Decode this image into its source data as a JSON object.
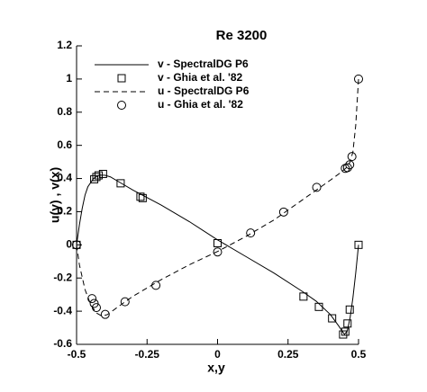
{
  "chart_data": {
    "type": "line",
    "title": "Re 3200",
    "x_label": "x,y",
    "y_label": "u(y) , v(x)",
    "xlim": [
      -0.5,
      0.5
    ],
    "xticks": [
      -0.5,
      -0.25,
      0,
      0.25,
      0.5
    ],
    "ylim": [
      -0.6,
      1.2
    ],
    "yticks": [
      -0.6,
      -0.4,
      -0.2,
      0,
      0.2,
      0.4,
      0.6,
      0.8,
      1,
      1.2
    ],
    "grid": false,
    "legend": "upper-left",
    "series": [
      {
        "name": "v - SpectralDG P6",
        "color": "#000000",
        "line": "solid",
        "marker": "none",
        "x": [
          -0.5,
          -0.49,
          -0.48,
          -0.47,
          -0.46,
          -0.44,
          -0.42,
          -0.4,
          -0.38,
          -0.35,
          -0.3,
          -0.2,
          -0.1,
          0,
          0.1,
          0.2,
          0.3,
          0.35,
          0.4,
          0.43,
          0.45,
          0.46,
          0.47,
          0.48,
          0.49,
          0.5
        ],
        "values": [
          0,
          0.12,
          0.22,
          0.3,
          0.35,
          0.4,
          0.42,
          0.42,
          0.41,
          0.38,
          0.33,
          0.24,
          0.14,
          0.03,
          -0.07,
          -0.17,
          -0.28,
          -0.34,
          -0.42,
          -0.49,
          -0.54,
          -0.52,
          -0.44,
          -0.32,
          -0.17,
          0
        ]
      },
      {
        "name": "v - Ghia et al. '82",
        "color": "#000000",
        "line": "none",
        "marker": "square",
        "x": [
          0.5,
          0.4688,
          0.4609,
          0.4531,
          0.4453,
          0.4063,
          0.3594,
          0.3047,
          0,
          -0.2656,
          -0.2734,
          -0.3437,
          -0.4062,
          -0.4219,
          -0.4297,
          -0.4375,
          -0.5
        ],
        "values": [
          0,
          -0.39017,
          -0.47425,
          -0.52357,
          -0.54053,
          -0.44307,
          -0.37401,
          -0.31184,
          0.00999,
          0.28188,
          0.2903,
          0.37119,
          0.42768,
          0.41906,
          0.40917,
          0.3956,
          0
        ]
      },
      {
        "name": "u - SpectralDG P6",
        "color": "#000000",
        "line": "dashed",
        "marker": "none",
        "x": [
          -0.5,
          -0.49,
          -0.47,
          -0.45,
          -0.43,
          -0.41,
          -0.39,
          -0.35,
          -0.3,
          -0.2,
          -0.1,
          0,
          0.1,
          0.2,
          0.3,
          0.35,
          0.4,
          0.44,
          0.46,
          0.47,
          0.48,
          0.49,
          0.5
        ],
        "values": [
          0,
          -0.12,
          -0.27,
          -0.36,
          -0.41,
          -0.43,
          -0.42,
          -0.37,
          -0.31,
          -0.21,
          -0.12,
          -0.04,
          0.05,
          0.15,
          0.27,
          0.33,
          0.39,
          0.44,
          0.47,
          0.5,
          0.56,
          0.72,
          1
        ]
      },
      {
        "name": "u - Ghia et al. '82",
        "color": "#000000",
        "line": "none",
        "marker": "circle",
        "x": [
          0.5,
          0.4766,
          0.4688,
          0.4609,
          0.4531,
          0.3516,
          0.2344,
          0.1172,
          0,
          -0.2187,
          -0.3281,
          -0.3984,
          -0.4297,
          -0.4375,
          -0.4453,
          -0.5
        ],
        "values": [
          1,
          0.53236,
          0.48296,
          0.46547,
          0.46101,
          0.34682,
          0.19791,
          0.07156,
          -0.04272,
          -0.24427,
          -0.34323,
          -0.41933,
          -0.37827,
          -0.35344,
          -0.32407,
          0
        ]
      }
    ]
  }
}
